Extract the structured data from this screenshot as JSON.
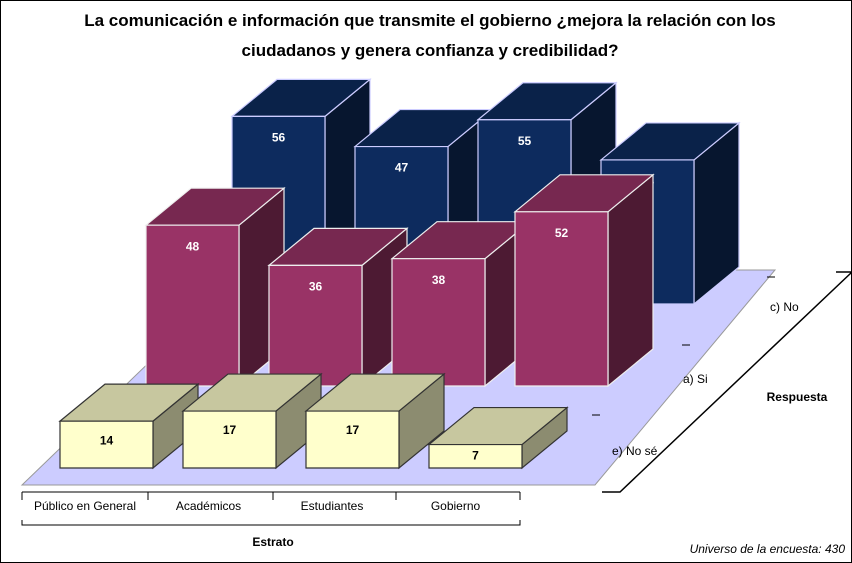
{
  "chart_data": {
    "type": "bar3d",
    "title": "La comunicación e información que transmite el gobierno ¿mejora la relación con los ciudadanos y genera confianza y credibilidad?",
    "x_label": "Estrato",
    "series_label": "Respuesta",
    "note": "Universo de la encuesta: 430",
    "categories": [
      "Público en General",
      "Académicos",
      "Estudiantes",
      "Gobierno"
    ],
    "series": [
      {
        "name": "e) No sé",
        "color": "#ffffcc",
        "values": [
          14,
          17,
          17,
          7
        ]
      },
      {
        "name": "a) Si",
        "color": "#993366",
        "values": [
          48,
          36,
          38,
          52
        ]
      },
      {
        "name": "c) No",
        "color": "#0d2b5e",
        "values": [
          56,
          47,
          55,
          43
        ]
      }
    ]
  }
}
